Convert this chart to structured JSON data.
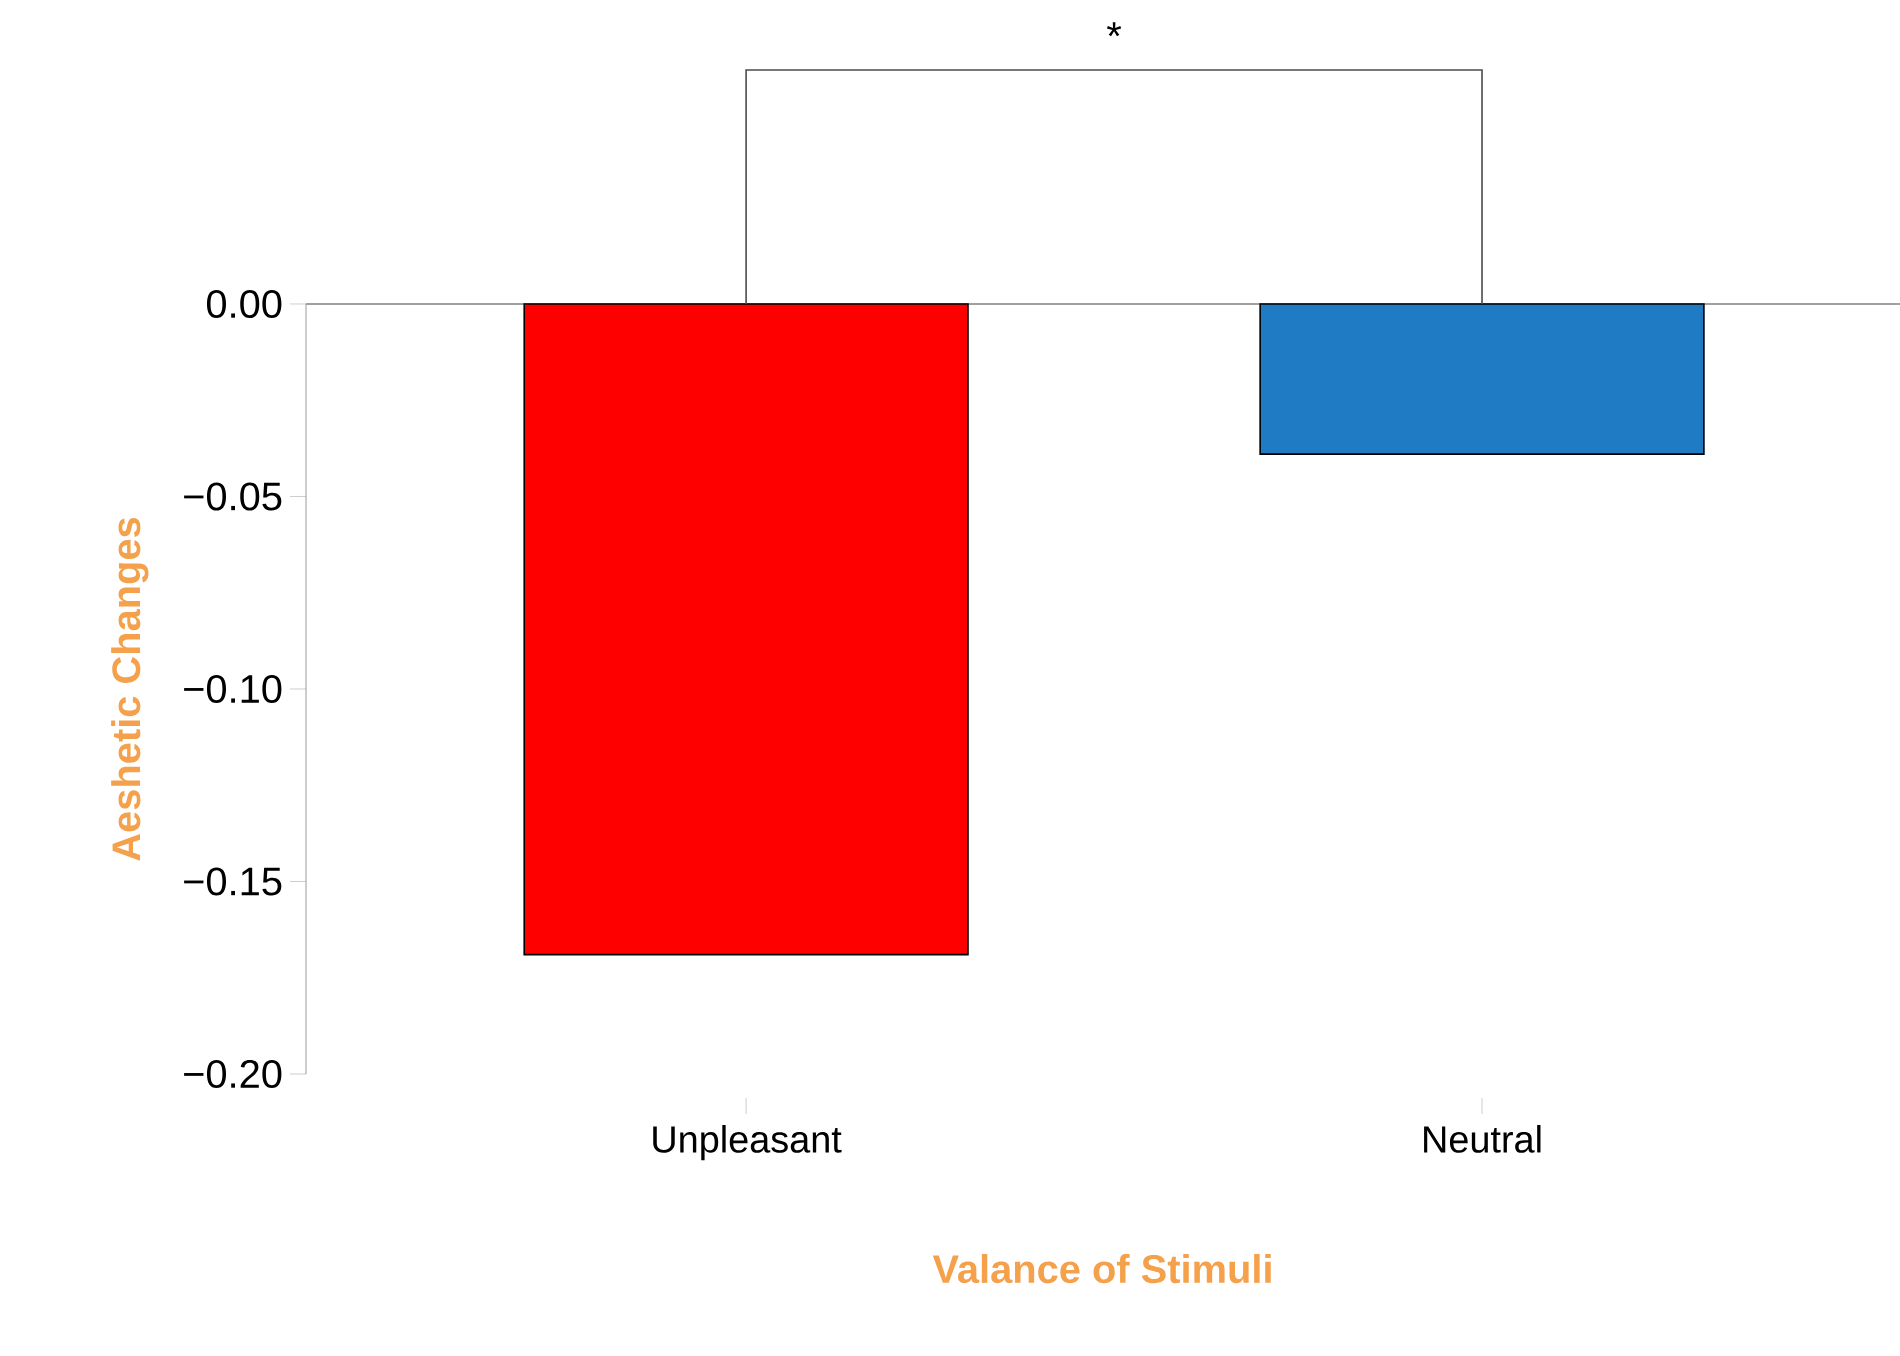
{
  "chart_data": {
    "type": "bar",
    "xlabel": "Valance of Stimuli",
    "ylabel": "Aeshetic Changes",
    "categories": [
      "Unpleasant",
      "Neutral"
    ],
    "values": [
      -0.169,
      -0.039
    ],
    "colors": [
      "#ff0000",
      "#1f7bc4"
    ],
    "ylim": [
      -0.2,
      0
    ],
    "yticks": [
      {
        "value": -0.2,
        "label": "−0.20"
      },
      {
        "value": -0.15,
        "label": "−0.15"
      },
      {
        "value": -0.1,
        "label": "−0.10"
      },
      {
        "value": -0.05,
        "label": "−0.05"
      },
      {
        "value": 0,
        "label": "0.00"
      }
    ],
    "ref_lines": [
      {
        "axis": "y",
        "value": 0,
        "color": "#a0a0a0"
      }
    ],
    "annotations": [
      "*"
    ],
    "grid": false
  }
}
